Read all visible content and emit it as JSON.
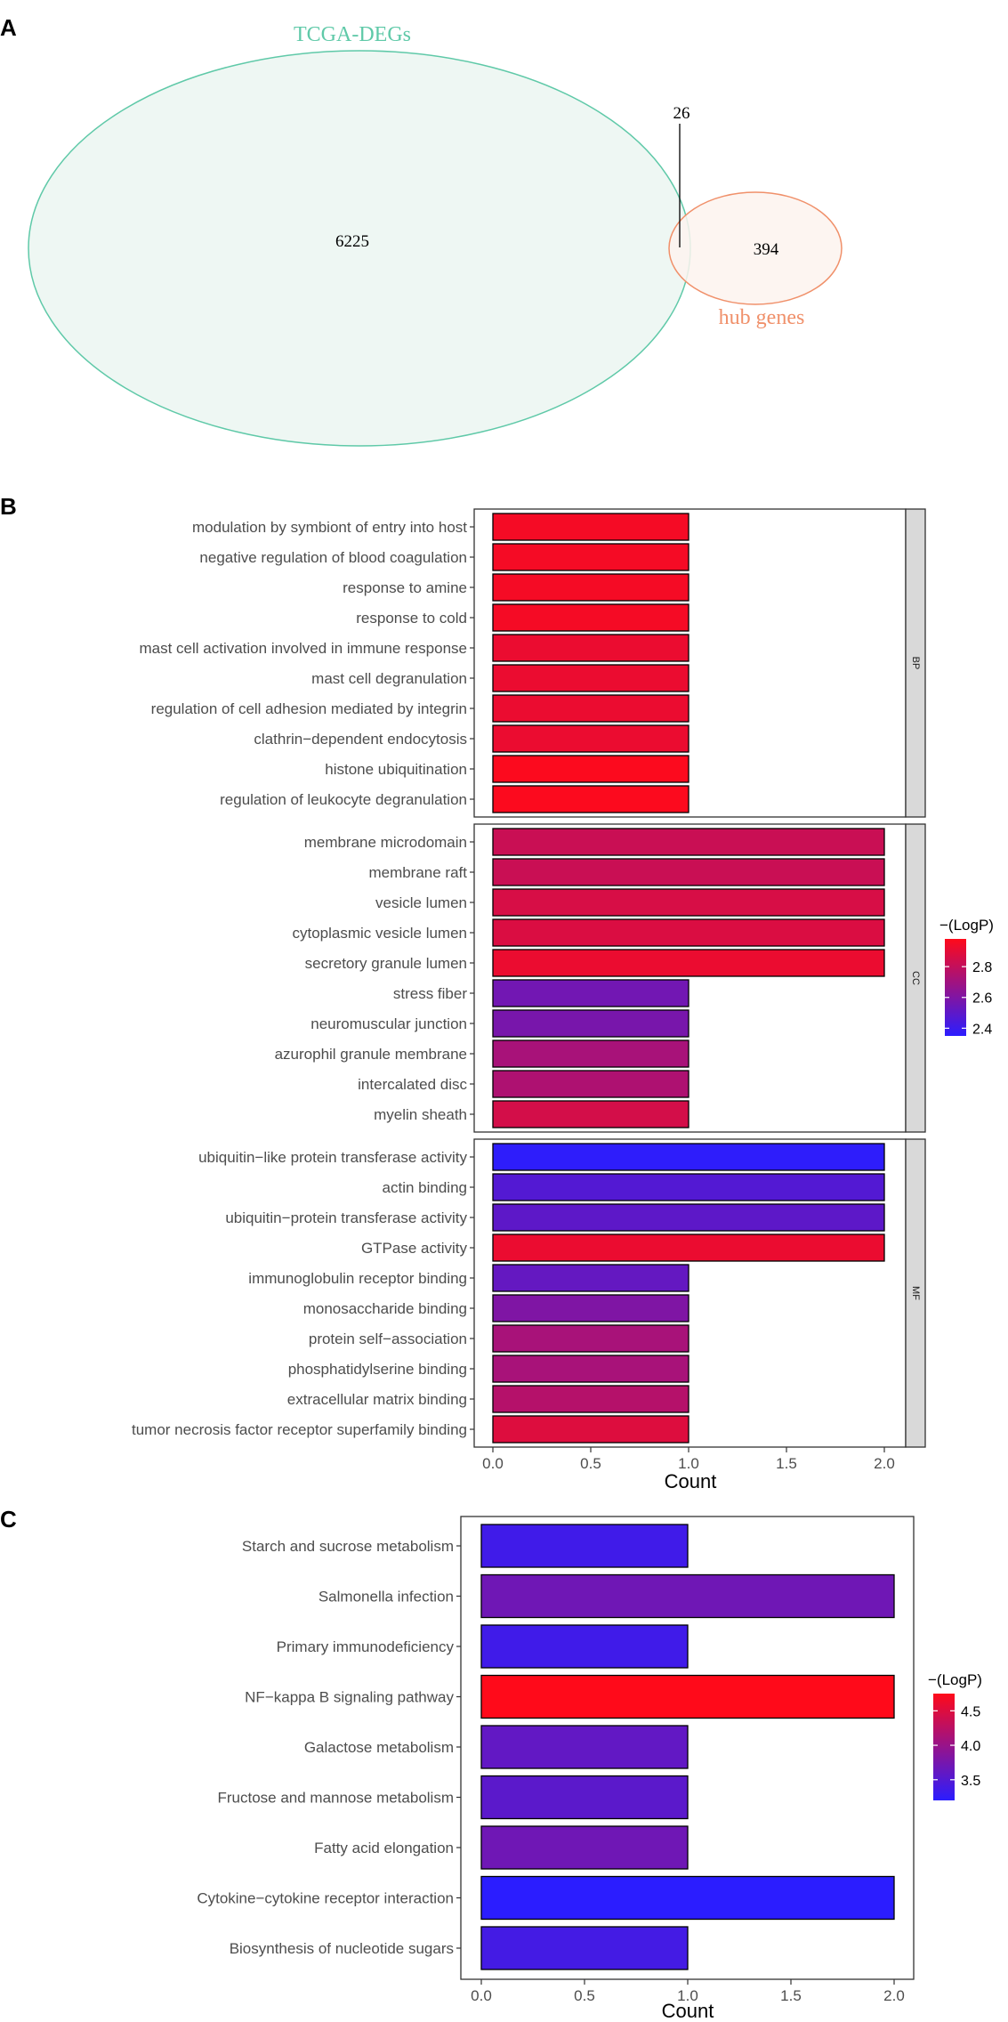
{
  "panels": {
    "a": "A",
    "b": "B",
    "c": "C"
  },
  "colors": {
    "tcga_stroke": "#5fc9a8",
    "tcga_fill": "#eef7f3",
    "hub_stroke": "#f0906a",
    "hub_fill": "#fdf3ee",
    "low": "#2b1dff",
    "high": "#ff0a1a",
    "strip_fill": "#d9d9d9"
  },
  "venn": {
    "tcga_label": "TCGA-DEGs",
    "hub_label": "hub genes",
    "tcga_only": "6225",
    "overlap": "26",
    "hub_only": "394"
  },
  "chart_data": [
    {
      "type": "bar",
      "orientation": "horizontal",
      "faceted": true,
      "xlabel": "Count",
      "xlim": [
        0,
        2.1
      ],
      "xticks": [
        "0.0",
        "0.5",
        "1.0",
        "1.5",
        "2.0"
      ],
      "legend": {
        "title": "−(LogP)",
        "placement": "right",
        "range": [
          2.35,
          2.98
        ],
        "ticks": [
          "2.4",
          "2.6",
          "2.8"
        ]
      },
      "facets": [
        {
          "name": "BP",
          "bars": [
            {
              "label": "modulation by symbiont of entry into host",
              "count": 1,
              "logp": 2.95
            },
            {
              "label": "negative regulation of blood coagulation",
              "count": 1,
              "logp": 2.95
            },
            {
              "label": "response to amine",
              "count": 1,
              "logp": 2.95
            },
            {
              "label": "response to cold",
              "count": 1,
              "logp": 2.95
            },
            {
              "label": "mast cell activation involved in immune response",
              "count": 1,
              "logp": 2.92
            },
            {
              "label": "mast cell degranulation",
              "count": 1,
              "logp": 2.92
            },
            {
              "label": "regulation of cell adhesion mediated by integrin",
              "count": 1,
              "logp": 2.92
            },
            {
              "label": "clathrin−dependent endocytosis",
              "count": 1,
              "logp": 2.92
            },
            {
              "label": "histone ubiquitination",
              "count": 1,
              "logp": 2.97
            },
            {
              "label": "regulation of leukocyte degranulation",
              "count": 1,
              "logp": 2.97
            }
          ]
        },
        {
          "name": "CC",
          "bars": [
            {
              "label": "membrane microdomain",
              "count": 2,
              "logp": 2.82
            },
            {
              "label": "membrane raft",
              "count": 2,
              "logp": 2.82
            },
            {
              "label": "vesicle lumen",
              "count": 2,
              "logp": 2.86
            },
            {
              "label": "cytoplasmic vesicle lumen",
              "count": 2,
              "logp": 2.87
            },
            {
              "label": "secretory granule lumen",
              "count": 2,
              "logp": 2.92
            },
            {
              "label": "stress fiber",
              "count": 1,
              "logp": 2.56
            },
            {
              "label": "neuromuscular junction",
              "count": 1,
              "logp": 2.58
            },
            {
              "label": "azurophil granule membrane",
              "count": 1,
              "logp": 2.72
            },
            {
              "label": "intercalated disc",
              "count": 1,
              "logp": 2.74
            },
            {
              "label": "myelin sheath",
              "count": 1,
              "logp": 2.85
            }
          ]
        },
        {
          "name": "MF",
          "bars": [
            {
              "label": "ubiquitin−like protein transferase activity",
              "count": 2,
              "logp": 2.36
            },
            {
              "label": "actin binding",
              "count": 2,
              "logp": 2.47
            },
            {
              "label": "ubiquitin−protein transferase activity",
              "count": 2,
              "logp": 2.5
            },
            {
              "label": "GTPase activity",
              "count": 2,
              "logp": 2.92
            },
            {
              "label": "immunoglobulin receptor binding",
              "count": 1,
              "logp": 2.52
            },
            {
              "label": "monosaccharide binding",
              "count": 1,
              "logp": 2.6
            },
            {
              "label": "protein self−association",
              "count": 1,
              "logp": 2.72
            },
            {
              "label": "phosphatidylserine binding",
              "count": 1,
              "logp": 2.72
            },
            {
              "label": "extracellular matrix binding",
              "count": 1,
              "logp": 2.76
            },
            {
              "label": "tumor necrosis factor receptor superfamily binding",
              "count": 1,
              "logp": 2.88
            }
          ]
        }
      ]
    },
    {
      "type": "bar",
      "orientation": "horizontal",
      "xlabel": "Count",
      "xlim": [
        0,
        2.1
      ],
      "xticks": [
        "0.0",
        "0.5",
        "1.0",
        "1.5",
        "2.0"
      ],
      "legend": {
        "title": "−(LogP)",
        "placement": "right",
        "range": [
          3.2,
          4.75
        ],
        "ticks": [
          "3.5",
          "4.0",
          "4.5"
        ]
      },
      "bars": [
        {
          "label": "Starch and sucrose metabolism",
          "count": 1,
          "logp": 3.35
        },
        {
          "label": "Salmonella infection",
          "count": 2,
          "logp": 3.7
        },
        {
          "label": "Primary immunodeficiency",
          "count": 1,
          "logp": 3.35
        },
        {
          "label": "NF−kappa B signaling pathway",
          "count": 2,
          "logp": 4.75
        },
        {
          "label": "Galactose metabolism",
          "count": 1,
          "logp": 3.6
        },
        {
          "label": "Fructose and mannose metabolism",
          "count": 1,
          "logp": 3.55
        },
        {
          "label": "Fatty acid elongation",
          "count": 1,
          "logp": 3.7
        },
        {
          "label": "Cytokine−cytokine receptor interaction",
          "count": 2,
          "logp": 3.2
        },
        {
          "label": "Biosynthesis of nucleotide sugars",
          "count": 1,
          "logp": 3.38
        }
      ]
    }
  ]
}
